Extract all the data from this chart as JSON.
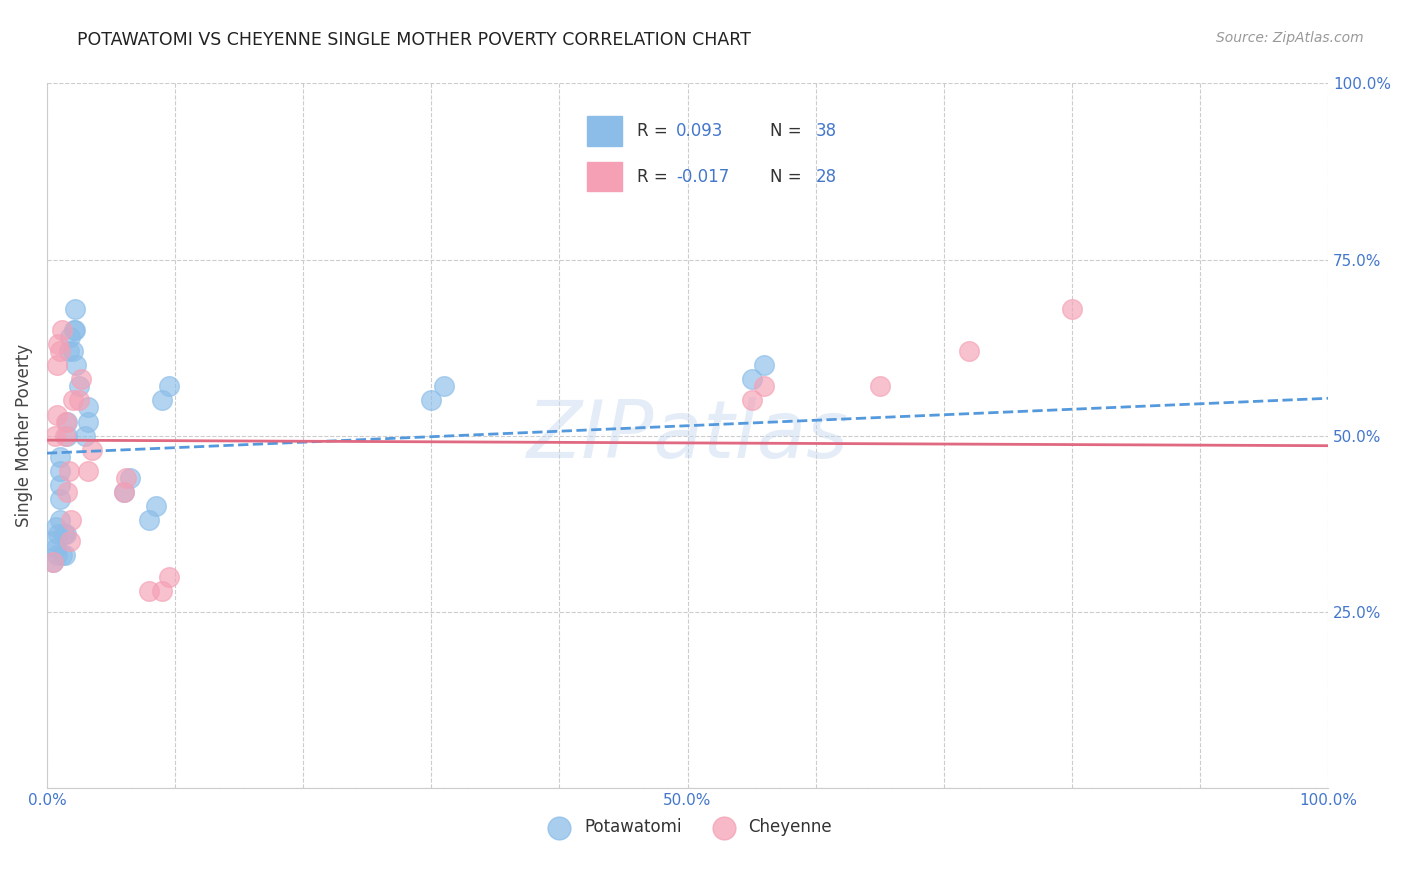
{
  "title": "POTAWATOMI VS CHEYENNE SINGLE MOTHER POVERTY CORRELATION CHART",
  "source": "Source: ZipAtlas.com",
  "ylabel": "Single Mother Poverty",
  "xlim": [
    0.0,
    1.0
  ],
  "ylim": [
    0.0,
    1.0
  ],
  "potawatomi_R": 0.093,
  "potawatomi_N": 38,
  "cheyenne_R": -0.017,
  "cheyenne_N": 28,
  "potawatomi_color": "#8bbde8",
  "cheyenne_color": "#f5a0b5",
  "trendline_blue_color": "#5599dd",
  "trendline_pink_color": "#e06880",
  "blue_text_color": "#4477cc",
  "background_color": "#ffffff",
  "grid_color": "#cccccc",
  "potawatomi_x": [
    0.005,
    0.005,
    0.007,
    0.007,
    0.008,
    0.009,
    0.01,
    0.01,
    0.01,
    0.01,
    0.01,
    0.012,
    0.013,
    0.014,
    0.015,
    0.016,
    0.016,
    0.017,
    0.018,
    0.02,
    0.021,
    0.022,
    0.022,
    0.023,
    0.025,
    0.03,
    0.032,
    0.032,
    0.06,
    0.065,
    0.08,
    0.085,
    0.09,
    0.095,
    0.3,
    0.31,
    0.55,
    0.56
  ],
  "potawatomi_y": [
    0.32,
    0.35,
    0.34,
    0.37,
    0.33,
    0.36,
    0.38,
    0.41,
    0.43,
    0.45,
    0.47,
    0.33,
    0.36,
    0.33,
    0.36,
    0.5,
    0.52,
    0.62,
    0.64,
    0.62,
    0.65,
    0.65,
    0.68,
    0.6,
    0.57,
    0.5,
    0.52,
    0.54,
    0.42,
    0.44,
    0.38,
    0.4,
    0.55,
    0.57,
    0.55,
    0.57,
    0.58,
    0.6
  ],
  "cheyenne_x": [
    0.005,
    0.006,
    0.008,
    0.008,
    0.009,
    0.01,
    0.012,
    0.014,
    0.015,
    0.016,
    0.017,
    0.018,
    0.019,
    0.02,
    0.025,
    0.027,
    0.032,
    0.035,
    0.06,
    0.062,
    0.08,
    0.09,
    0.095,
    0.55,
    0.56,
    0.65,
    0.72,
    0.8
  ],
  "cheyenne_y": [
    0.32,
    0.5,
    0.53,
    0.6,
    0.63,
    0.62,
    0.65,
    0.5,
    0.52,
    0.42,
    0.45,
    0.35,
    0.38,
    0.55,
    0.55,
    0.58,
    0.45,
    0.48,
    0.42,
    0.44,
    0.28,
    0.28,
    0.3,
    0.55,
    0.57,
    0.57,
    0.62,
    0.68
  ]
}
